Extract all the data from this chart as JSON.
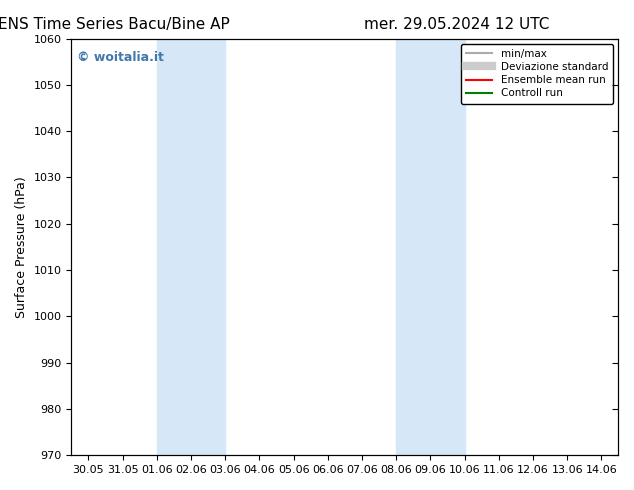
{
  "title_left": "ENS Time Series Bacu/Bine AP",
  "title_right": "mer. 29.05.2024 12 UTC",
  "ylabel": "Surface Pressure (hPa)",
  "ylim": [
    970,
    1060
  ],
  "yticks": [
    970,
    980,
    990,
    1000,
    1010,
    1020,
    1030,
    1040,
    1050,
    1060
  ],
  "xtick_labels": [
    "30.05",
    "31.05",
    "01.06",
    "02.06",
    "03.06",
    "04.06",
    "05.06",
    "06.06",
    "07.06",
    "08.06",
    "09.06",
    "10.06",
    "11.06",
    "12.06",
    "13.06",
    "14.06"
  ],
  "shaded_bands": [
    {
      "x_start": "01.06",
      "x_end": "03.06"
    },
    {
      "x_start": "08.06",
      "x_end": "10.06"
    }
  ],
  "shaded_color": "#d6e8f7",
  "watermark": "© woitalia.it",
  "watermark_color": "#4477aa",
  "legend_entries": [
    {
      "label": "min/max",
      "color": "#aaaaaa",
      "lw": 1.5,
      "style": "solid"
    },
    {
      "label": "Deviazione standard",
      "color": "#cccccc",
      "lw": 6,
      "style": "solid"
    },
    {
      "label": "Ensemble mean run",
      "color": "red",
      "lw": 1.5,
      "style": "solid"
    },
    {
      "label": "Controll run",
      "color": "green",
      "lw": 1.5,
      "style": "solid"
    }
  ],
  "bg_color": "#ffffff",
  "title_fontsize": 11,
  "axis_fontsize": 9,
  "tick_fontsize": 8,
  "watermark_fontsize": 9
}
